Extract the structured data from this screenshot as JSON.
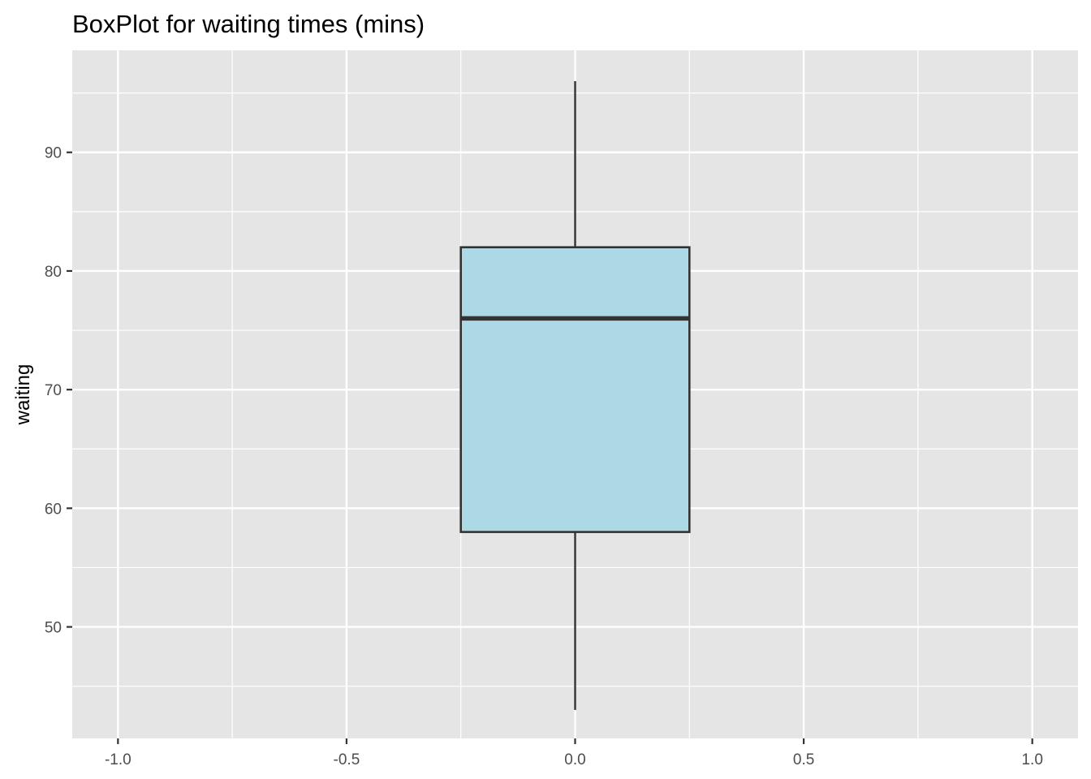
{
  "chart_data": {
    "type": "boxplot",
    "title": "BoxPlot for waiting times (mins)",
    "xlabel": "",
    "ylabel": "waiting",
    "xlim": [
      -1.1,
      1.1
    ],
    "ylim": [
      40.6,
      98.6
    ],
    "x_ticks": [
      -1.0,
      -0.5,
      0.0,
      0.5,
      1.0
    ],
    "x_tick_labels": [
      "-1.0",
      "-0.5",
      "0.0",
      "0.5",
      "1.0"
    ],
    "y_ticks": [
      50,
      60,
      70,
      80,
      90
    ],
    "y_tick_labels": [
      "50",
      "60",
      "70",
      "80",
      "90"
    ],
    "grid": true,
    "boxes": [
      {
        "x": 0.0,
        "width": 0.5,
        "whisker_low": 43,
        "q1": 58,
        "median": 76,
        "q3": 82,
        "whisker_high": 96
      }
    ],
    "colors": {
      "panel": "#e5e5e5",
      "grid": "#ffffff",
      "box_fill": "#add8e6",
      "box_line": "#333333",
      "tick_text": "#4d4d4d"
    }
  }
}
